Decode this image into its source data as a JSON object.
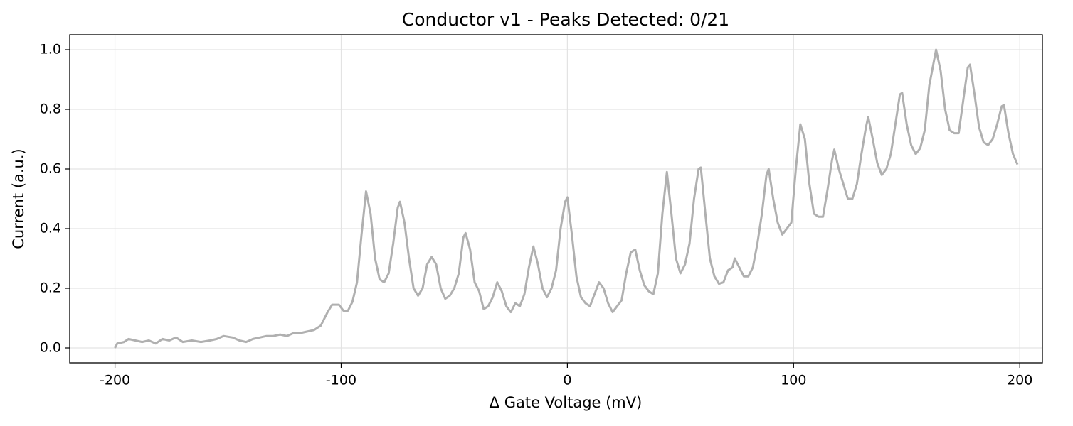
{
  "chart_data": {
    "type": "line",
    "title": "Conductor v1 - Peaks Detected: 0/21",
    "xlabel": "Δ Gate Voltage (mV)",
    "ylabel": "Current (a.u.)",
    "color": "#b0b0b0",
    "grid": true,
    "xlim": [
      -220,
      210
    ],
    "ylim": [
      -0.05,
      1.05
    ],
    "xticks": [
      -200,
      -100,
      0,
      100,
      200
    ],
    "yticks": [
      {
        "value": 0,
        "label": "0.0"
      },
      {
        "value": 0.2,
        "label": "0.2"
      },
      {
        "value": 0.4,
        "label": "0.4"
      },
      {
        "value": 0.6,
        "label": "0.6"
      },
      {
        "value": 0.8,
        "label": "0.8"
      },
      {
        "value": 1,
        "label": "1.0"
      }
    ],
    "x": [
      -200,
      -199,
      -196,
      -194,
      -191,
      -188,
      -185,
      -182,
      -179,
      -176,
      -173,
      -170,
      -166,
      -162,
      -158,
      -155,
      -152,
      -148,
      -145,
      -142,
      -139,
      -136,
      -133,
      -130,
      -127,
      -124,
      -121,
      -118,
      -115,
      -112,
      -109,
      -106,
      -104,
      -101,
      -99,
      -97,
      -95,
      -93,
      -91,
      -89,
      -87,
      -85,
      -83,
      -81,
      -79,
      -77,
      -75,
      -74,
      -72,
      -70,
      -68,
      -66,
      -64,
      -62,
      -60,
      -58,
      -56,
      -54,
      -52,
      -50,
      -48,
      -46,
      -45,
      -43,
      -41,
      -39,
      -37,
      -35,
      -33,
      -31,
      -29,
      -27,
      -25,
      -23,
      -21,
      -19,
      -17,
      -15,
      -13,
      -11,
      -9,
      -7,
      -5,
      -3,
      -1,
      0,
      2,
      4,
      6,
      8,
      10,
      12,
      14,
      16,
      18,
      20,
      22,
      24,
      26,
      28,
      30,
      32,
      34,
      36,
      38,
      40,
      42,
      44,
      46,
      48,
      50,
      52,
      54,
      56,
      58,
      59,
      61,
      63,
      65,
      67,
      69,
      71,
      73,
      74,
      76,
      78,
      80,
      82,
      84,
      86,
      88,
      89,
      91,
      93,
      95,
      97,
      99,
      101,
      103,
      105,
      107,
      109,
      111,
      113,
      115,
      117,
      118,
      120,
      122,
      124,
      126,
      128,
      130,
      132,
      133,
      135,
      137,
      139,
      141,
      143,
      145,
      147,
      148,
      150,
      152,
      154,
      156,
      158,
      160,
      163,
      165,
      167,
      169,
      171,
      173,
      175,
      177,
      178,
      180,
      182,
      184,
      186,
      188,
      190,
      192,
      193,
      195,
      197,
      199
    ],
    "values": [
      0.0,
      0.015,
      0.02,
      0.03,
      0.025,
      0.02,
      0.025,
      0.015,
      0.03,
      0.025,
      0.035,
      0.02,
      0.025,
      0.02,
      0.025,
      0.03,
      0.04,
      0.035,
      0.025,
      0.02,
      0.03,
      0.035,
      0.04,
      0.04,
      0.045,
      0.04,
      0.05,
      0.05,
      0.055,
      0.06,
      0.075,
      0.12,
      0.145,
      0.145,
      0.125,
      0.125,
      0.155,
      0.22,
      0.38,
      0.525,
      0.45,
      0.3,
      0.23,
      0.22,
      0.25,
      0.35,
      0.47,
      0.49,
      0.42,
      0.3,
      0.2,
      0.175,
      0.2,
      0.28,
      0.305,
      0.28,
      0.2,
      0.165,
      0.175,
      0.2,
      0.25,
      0.37,
      0.385,
      0.33,
      0.22,
      0.19,
      0.13,
      0.14,
      0.17,
      0.22,
      0.19,
      0.14,
      0.12,
      0.15,
      0.14,
      0.18,
      0.27,
      0.34,
      0.28,
      0.2,
      0.17,
      0.2,
      0.26,
      0.4,
      0.49,
      0.505,
      0.38,
      0.24,
      0.17,
      0.15,
      0.14,
      0.18,
      0.22,
      0.2,
      0.15,
      0.12,
      0.14,
      0.16,
      0.25,
      0.32,
      0.33,
      0.26,
      0.21,
      0.19,
      0.18,
      0.25,
      0.45,
      0.59,
      0.45,
      0.3,
      0.25,
      0.28,
      0.35,
      0.5,
      0.6,
      0.605,
      0.45,
      0.3,
      0.24,
      0.215,
      0.22,
      0.26,
      0.27,
      0.3,
      0.27,
      0.24,
      0.24,
      0.27,
      0.35,
      0.45,
      0.58,
      0.6,
      0.5,
      0.42,
      0.38,
      0.4,
      0.42,
      0.6,
      0.75,
      0.7,
      0.55,
      0.45,
      0.44,
      0.44,
      0.53,
      0.63,
      0.665,
      0.6,
      0.55,
      0.5,
      0.5,
      0.55,
      0.65,
      0.74,
      0.775,
      0.7,
      0.62,
      0.58,
      0.6,
      0.65,
      0.75,
      0.85,
      0.855,
      0.75,
      0.68,
      0.65,
      0.67,
      0.73,
      0.88,
      1.0,
      0.93,
      0.8,
      0.73,
      0.72,
      0.72,
      0.83,
      0.94,
      0.95,
      0.85,
      0.74,
      0.69,
      0.68,
      0.7,
      0.75,
      0.81,
      0.815,
      0.72,
      0.65,
      0.615
    ]
  }
}
